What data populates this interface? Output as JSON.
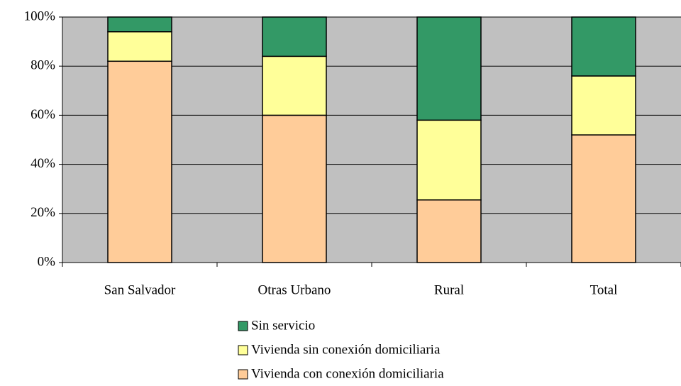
{
  "chart_data": {
    "type": "bar",
    "stacked": true,
    "categories": [
      "San Salvador",
      "Otras Urbano",
      "Rural",
      "Total"
    ],
    "series": [
      {
        "name": "Vivienda con conexión domiciliaria",
        "color": "#ffcc99",
        "values": [
          82,
          60,
          25.5,
          52
        ]
      },
      {
        "name": "Vivienda sin conexión domiciliaria",
        "color": "#ffff99",
        "values": [
          12,
          24,
          32.5,
          24
        ]
      },
      {
        "name": "Sin servicio",
        "color": "#339966",
        "values": [
          6,
          16,
          42,
          24
        ]
      }
    ],
    "ylim": [
      0,
      100
    ],
    "yticks": [
      {
        "value": 0,
        "label": "0%"
      },
      {
        "value": 20,
        "label": "20%"
      },
      {
        "value": 40,
        "label": "40%"
      },
      {
        "value": 60,
        "label": "60%"
      },
      {
        "value": 80,
        "label": "80%"
      },
      {
        "value": 100,
        "label": "100%"
      }
    ],
    "grid": true,
    "legend": "bottom"
  }
}
